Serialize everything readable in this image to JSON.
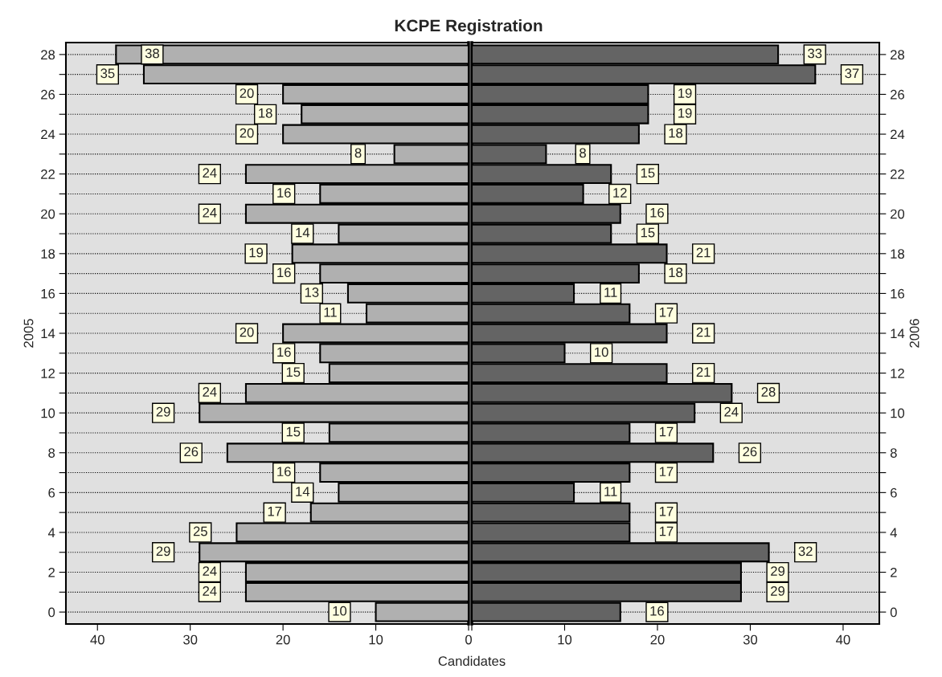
{
  "chart_data": [
    {
      "type": "bar",
      "orientation": "horizontal",
      "title": "KCPE Registration",
      "ylabel": "2005",
      "x": [
        0,
        1,
        2,
        3,
        4,
        5,
        6,
        7,
        8,
        9,
        10,
        11,
        12,
        13,
        14,
        15,
        16,
        17,
        18,
        19,
        20,
        21,
        22,
        23,
        24,
        25,
        26,
        27,
        28
      ],
      "series": [
        {
          "color": "#b0b0b0",
          "values": [
            10,
            24,
            24,
            29,
            25,
            17,
            14,
            16,
            26,
            15,
            29,
            24,
            15,
            16,
            20,
            11,
            13,
            16,
            19,
            14,
            24,
            16,
            24,
            8,
            20,
            18,
            20,
            35,
            38
          ]
        }
      ],
      "data_labels": true,
      "xlim": [
        43.4,
        0
      ],
      "xticks": [
        40,
        30,
        20,
        10,
        0
      ],
      "ylim": [
        -0.6,
        28.6
      ],
      "yticks": [
        0,
        {
          "value": 1,
          "label": null
        },
        2,
        {
          "value": 3,
          "label": null
        },
        4,
        {
          "value": 5,
          "label": null
        },
        6,
        {
          "value": 7,
          "label": null
        },
        8,
        {
          "value": 9,
          "label": null
        },
        10,
        {
          "value": 11,
          "label": null
        },
        12,
        {
          "value": 13,
          "label": null
        },
        14,
        {
          "value": 15,
          "label": null
        },
        16,
        {
          "value": 17,
          "label": null
        },
        18,
        {
          "value": 19,
          "label": null
        },
        20,
        {
          "value": 21,
          "label": null
        },
        22,
        {
          "value": 23,
          "label": null
        },
        24,
        {
          "value": 25,
          "label": null
        },
        26,
        {
          "value": 27,
          "label": null
        },
        28
      ],
      "grid": "y"
    },
    {
      "type": "bar",
      "orientation": "horizontal",
      "xlabel": "Candidates",
      "ylabel": "2006",
      "x": [
        0,
        1,
        2,
        3,
        4,
        5,
        6,
        7,
        8,
        9,
        10,
        11,
        12,
        13,
        14,
        15,
        16,
        17,
        18,
        19,
        20,
        21,
        22,
        23,
        24,
        25,
        26,
        27,
        28
      ],
      "series": [
        {
          "color": "#646464",
          "values": [
            16,
            29,
            29,
            32,
            17,
            17,
            11,
            17,
            26,
            17,
            24,
            28,
            21,
            10,
            21,
            17,
            11,
            18,
            21,
            15,
            16,
            12,
            15,
            8,
            18,
            19,
            19,
            37,
            33
          ]
        }
      ],
      "data_labels": true,
      "xlim": [
        0,
        43.9
      ],
      "xticks": [
        {
          "value": 0,
          "label": null
        },
        10,
        20,
        30,
        40
      ],
      "ylim": [
        -0.6,
        28.6
      ],
      "yticks": [
        0,
        {
          "value": 1,
          "label": null
        },
        2,
        {
          "value": 3,
          "label": null
        },
        4,
        {
          "value": 5,
          "label": null
        },
        6,
        {
          "value": 7,
          "label": null
        },
        8,
        {
          "value": 9,
          "label": null
        },
        10,
        {
          "value": 11,
          "label": null
        },
        12,
        {
          "value": 13,
          "label": null
        },
        14,
        {
          "value": 15,
          "label": null
        },
        16,
        {
          "value": 17,
          "label": null
        },
        18,
        {
          "value": 19,
          "label": null
        },
        20,
        {
          "value": 21,
          "label": null
        },
        22,
        {
          "value": 23,
          "label": null
        },
        24,
        {
          "value": 25,
          "label": null
        },
        26,
        {
          "value": 27,
          "label": null
        },
        28
      ],
      "grid": "y"
    }
  ]
}
